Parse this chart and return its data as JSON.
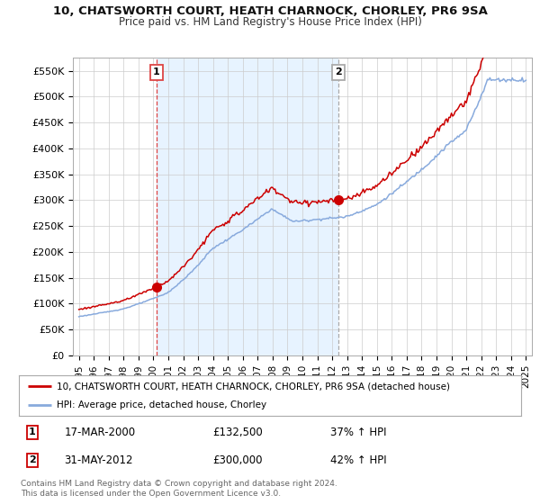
{
  "title": "10, CHATSWORTH COURT, HEATH CHARNOCK, CHORLEY, PR6 9SA",
  "subtitle": "Price paid vs. HM Land Registry's House Price Index (HPI)",
  "ylim": [
    0,
    575000
  ],
  "yticks": [
    0,
    50000,
    100000,
    150000,
    200000,
    250000,
    300000,
    350000,
    400000,
    450000,
    500000,
    550000
  ],
  "ytick_labels": [
    "£0",
    "£50K",
    "£100K",
    "£150K",
    "£200K",
    "£250K",
    "£300K",
    "£350K",
    "£400K",
    "£450K",
    "£500K",
    "£550K"
  ],
  "line1_color": "#cc0000",
  "line2_color": "#88aadd",
  "sale1_year": 2000.21,
  "sale1_price": 132500,
  "sale2_year": 2012.41,
  "sale2_price": 300000,
  "vline1_color": "#dd4444",
  "vline2_color": "#aaaaaa",
  "shade_color": "#ddeeff",
  "legend_label1": "10, CHATSWORTH COURT, HEATH CHARNOCK, CHORLEY, PR6 9SA (detached house)",
  "legend_label2": "HPI: Average price, detached house, Chorley",
  "table_row1": [
    "1",
    "17-MAR-2000",
    "£132,500",
    "37% ↑ HPI"
  ],
  "table_row2": [
    "2",
    "31-MAY-2012",
    "£300,000",
    "42% ↑ HPI"
  ],
  "footer": "Contains HM Land Registry data © Crown copyright and database right 2024.\nThis data is licensed under the Open Government Licence v3.0.",
  "background_color": "#ffffff",
  "grid_color": "#cccccc"
}
